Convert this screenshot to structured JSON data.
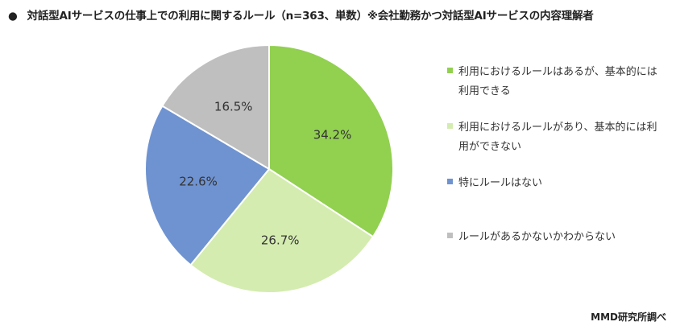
{
  "chart_data": {
    "type": "pie",
    "title": "対話型AIサービスの仕事上での利用に関するルール（n=363、単数）※会社勤務かつ対話型AIサービスの内容理解者",
    "bullet": "●",
    "series": [
      {
        "name": "利用におけるルールはあるが、基本的には利用できる",
        "value": 34.2,
        "label": "34.2%",
        "color": "#92d050"
      },
      {
        "name": "利用におけるルールがあり、基本的には利用ができない",
        "value": 26.7,
        "label": "26.7%",
        "color": "#d4ecb0"
      },
      {
        "name": "特にルールはない",
        "value": 22.6,
        "label": "22.6%",
        "color": "#6f93d1"
      },
      {
        "name": "ルールがあるかないかわからない",
        "value": 16.5,
        "label": "16.5%",
        "color": "#bfbfbf"
      }
    ],
    "legend_position": "right",
    "source": "MMD研究所調べ"
  }
}
